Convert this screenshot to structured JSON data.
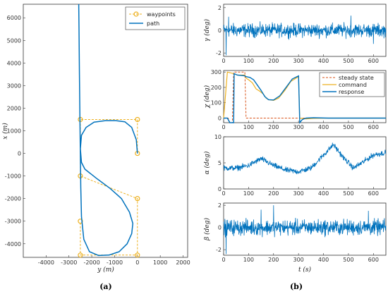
{
  "colors": {
    "path": "#0072BD",
    "waypoints": "#EDB120",
    "command": "#EDB120",
    "response": "#0072BD",
    "steady": "#D95319",
    "axis": "#333333"
  },
  "captions": {
    "a": "(a)",
    "b": "(b)"
  },
  "chart_data": [
    {
      "type": "line",
      "panel": "a",
      "xlabel": "y (m)",
      "ylabel": "x (m)",
      "xlim": [
        -5000,
        2200
      ],
      "ylim": [
        -4600,
        6600
      ],
      "xticks": [
        -4000,
        -3000,
        -2000,
        -1000,
        0,
        1000,
        2000
      ],
      "yticks": [
        -4000,
        -3000,
        -2000,
        -1000,
        0,
        1000,
        2000,
        3000,
        4000,
        5000,
        6000
      ],
      "legend": {
        "position": "top-right",
        "entries": [
          "waypoints",
          "path"
        ]
      },
      "series": [
        {
          "name": "waypoints",
          "style": "dashed-with-circles",
          "x": [
            0,
            0,
            -2500,
            -2500,
            0,
            0,
            -2500,
            -2500
          ],
          "y": [
            0,
            1500,
            1500,
            -1000,
            -2000,
            -4500,
            -4500,
            -3000
          ],
          "extra_points": {
            "x": [
              -2500
            ],
            "y": [
              -3000
            ]
          }
        },
        {
          "name": "path",
          "x": [
            0,
            -50,
            -250,
            -550,
            -950,
            -1400,
            -1900,
            -2250,
            -2450,
            -2500,
            -2450,
            -2300,
            -1800,
            -1200,
            -700,
            -350,
            -200,
            -250,
            -450,
            -800,
            -1250,
            -1700,
            -2100,
            -2350,
            -2450,
            -2480,
            -2500,
            -2520,
            -2540,
            -2560,
            -2570
          ],
          "y": [
            0,
            600,
            1150,
            1400,
            1450,
            1450,
            1380,
            1150,
            800,
            200,
            -400,
            -700,
            -1100,
            -1550,
            -2000,
            -2600,
            -3100,
            -3550,
            -4000,
            -4350,
            -4500,
            -4520,
            -4350,
            -3800,
            -2800,
            -1500,
            0,
            1500,
            3500,
            5500,
            6600
          ]
        }
      ]
    },
    {
      "type": "line",
      "panel": "b1",
      "ylabel": "γ (deg)",
      "xlim": [
        0,
        650
      ],
      "ylim": [
        -2.3,
        2.3
      ],
      "xticks": [
        0,
        100,
        200,
        300,
        400,
        500,
        600
      ],
      "yticks": [
        -2,
        0,
        2
      ],
      "ytick_labels": [
        "-2",
        "0",
        "2"
      ],
      "series": [
        {
          "name": "",
          "kind": "noise",
          "x": [
            0,
            650
          ],
          "y": [
            0,
            0
          ],
          "amplitude": 0.55,
          "spikes": [
            [
              10,
              -2.2
            ],
            [
              20,
              1.2
            ],
            [
              510,
              1.3
            ],
            [
              600,
              -1.2
            ]
          ]
        }
      ]
    },
    {
      "type": "line",
      "panel": "b2",
      "ylabel": "χ (deg)",
      "xlim": [
        0,
        650
      ],
      "ylim": [
        -30,
        310
      ],
      "xticks": [
        0,
        100,
        200,
        300,
        400,
        500,
        600
      ],
      "yticks": [
        0,
        100,
        200,
        300
      ],
      "legend": {
        "position": "top-right",
        "entries": [
          "steady state",
          "command",
          "response"
        ]
      },
      "series": [
        {
          "name": "steady state",
          "x": [
            0,
            18,
            25,
            35,
            40,
            45,
            85,
            90,
            300,
            305,
            650
          ],
          "y": [
            0,
            0,
            -30,
            -30,
            300,
            300,
            300,
            0,
            0,
            0,
            0
          ]
        },
        {
          "name": "command",
          "x": [
            0,
            15,
            40,
            55,
            85,
            90,
            100,
            115,
            130,
            145,
            160,
            170,
            180,
            200,
            220,
            245,
            270,
            300,
            305,
            330,
            360,
            420,
            500,
            650
          ],
          "y": [
            0,
            300,
            290,
            280,
            280,
            260,
            250,
            230,
            190,
            175,
            155,
            130,
            120,
            115,
            130,
            180,
            240,
            270,
            0,
            -5,
            -2,
            0,
            0,
            0
          ]
        },
        {
          "name": "response",
          "x": [
            0,
            15,
            25,
            40,
            42,
            55,
            85,
            90,
            105,
            120,
            135,
            150,
            165,
            180,
            200,
            225,
            250,
            275,
            300,
            305,
            315,
            330,
            360,
            420,
            500,
            650
          ],
          "y": [
            0,
            0,
            -30,
            -30,
            290,
            280,
            275,
            270,
            265,
            250,
            215,
            180,
            140,
            120,
            118,
            145,
            200,
            255,
            275,
            -30,
            -10,
            0,
            2,
            0,
            0,
            0
          ]
        }
      ]
    },
    {
      "type": "line",
      "panel": "b3",
      "ylabel": "α (deg)",
      "xlim": [
        0,
        650
      ],
      "ylim": [
        0,
        10
      ],
      "xticks": [
        0,
        100,
        200,
        300,
        400,
        500,
        600
      ],
      "yticks": [
        0,
        5,
        10
      ],
      "series": [
        {
          "name": "",
          "kind": "noise",
          "x": [
            0,
            50,
            100,
            150,
            200,
            250,
            300,
            350,
            400,
            440,
            480,
            520,
            560,
            600,
            650
          ],
          "y": [
            4,
            4,
            4.5,
            5.8,
            4.5,
            3.6,
            3.3,
            4,
            6.5,
            8.5,
            6,
            4,
            5.2,
            6.5,
            7
          ],
          "amplitude": 0.5
        }
      ]
    },
    {
      "type": "line",
      "panel": "b4",
      "xlabel": "t (s)",
      "ylabel": "β (deg)",
      "xlim": [
        0,
        650
      ],
      "ylim": [
        -2.5,
        2.2
      ],
      "xticks": [
        0,
        100,
        200,
        300,
        400,
        500,
        600
      ],
      "yticks": [
        -2,
        0,
        2
      ],
      "series": [
        {
          "name": "",
          "kind": "noise",
          "x": [
            0,
            650
          ],
          "y": [
            0,
            0
          ],
          "amplitude": 0.65,
          "spikes": [
            [
              10,
              -2.4
            ],
            [
              200,
              2.0
            ],
            [
              150,
              1.6
            ],
            [
              580,
              1.5
            ]
          ]
        }
      ]
    }
  ]
}
